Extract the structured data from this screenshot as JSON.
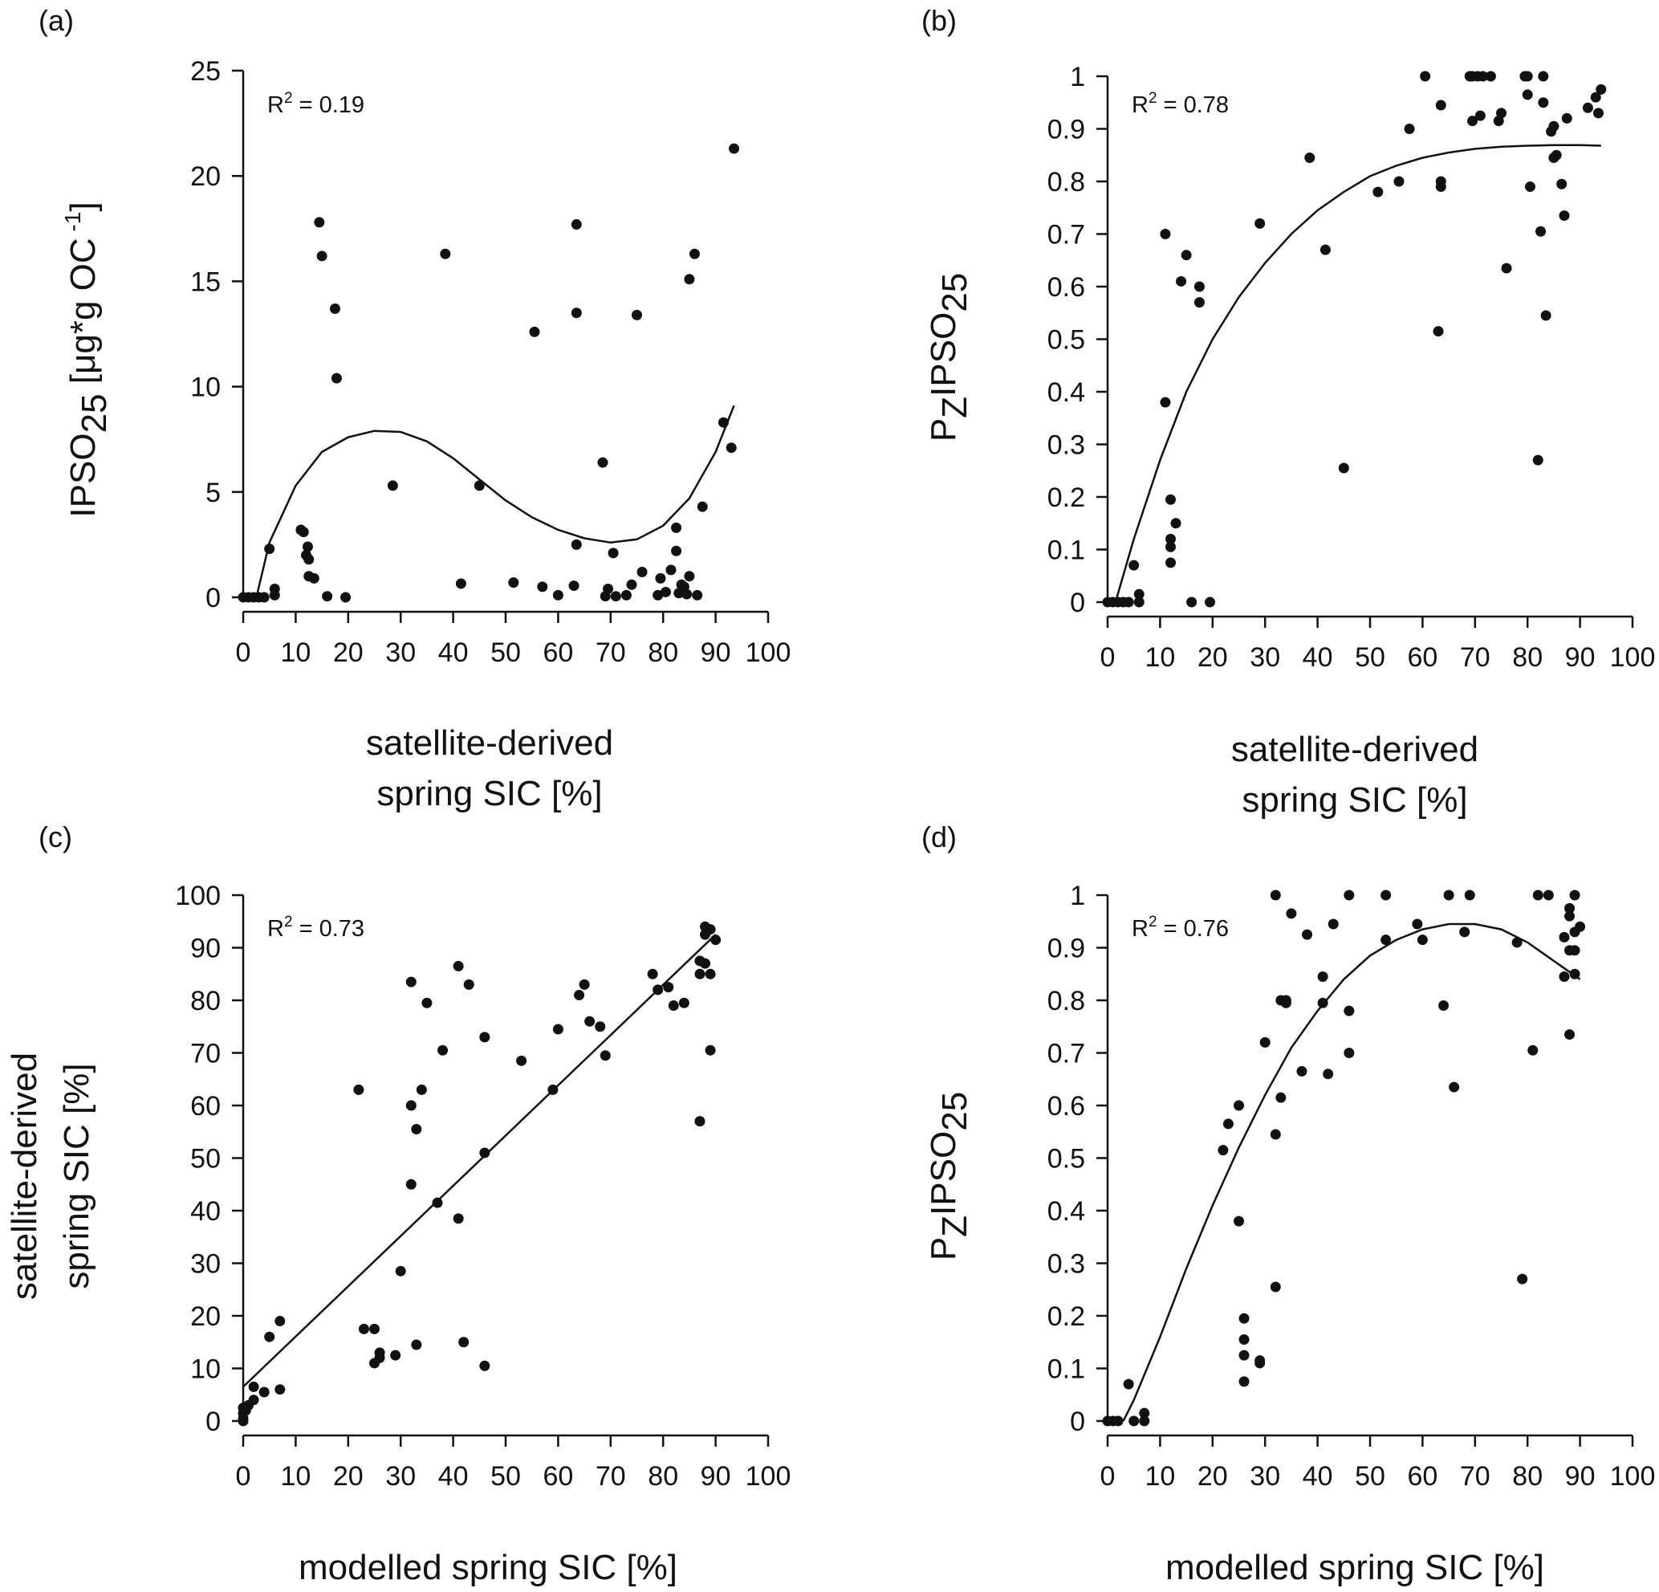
{
  "figure": {
    "panels": [
      {
        "id": "a",
        "panel_label": "(a)",
        "r2_label": "R",
        "r2_sup": "2",
        "r2_value": " = 0.19",
        "x_axis_label_lines": [
          "satellite-derived",
          "spring SIC [%]"
        ],
        "y_axis_label_main": "IPSO",
        "y_axis_label_sub": "25",
        "y_axis_label_rest": "  [μg*g OC",
        "y_axis_label_sup": " -1",
        "y_axis_label_end": "]"
      },
      {
        "id": "b",
        "panel_label": "(b)",
        "r2_label": "R",
        "r2_sup": "2",
        "r2_value": " = 0.78",
        "x_axis_label_lines": [
          "satellite-derived",
          "spring SIC [%]"
        ],
        "y_axis_label_main": "P",
        "y_axis_label_sub": "Z",
        "y_axis_label_rest": "IPSO",
        "y_axis_label_sub2": "25"
      },
      {
        "id": "c",
        "panel_label": "(c)",
        "r2_label": "R",
        "r2_sup": "2",
        "r2_value": " = 0.73",
        "x_axis_label_lines": [
          "modelled spring SIC [%]"
        ],
        "y_axis_label_lines": [
          "satellite-derived",
          "spring SIC [%]"
        ]
      },
      {
        "id": "d",
        "panel_label": "(d)",
        "r2_label": "R",
        "r2_sup": "2",
        "r2_value": " = 0.76",
        "x_axis_label_lines": [
          "modelled spring SIC [%]"
        ],
        "y_axis_label_main": "P",
        "y_axis_label_sub": "Z",
        "y_axis_label_rest": "IPSO",
        "y_axis_label_sub2": "25"
      }
    ]
  },
  "chart_data": [
    {
      "type": "scatter",
      "panel": "(a)",
      "xlabel": "satellite-derived spring SIC [%]",
      "ylabel": "IPSO25 [μg*g OC -1]",
      "xlim": [
        0,
        100
      ],
      "ylim": [
        0,
        25
      ],
      "xticks": [
        0,
        10,
        20,
        30,
        40,
        50,
        60,
        70,
        80,
        90,
        100
      ],
      "yticks": [
        0,
        5,
        10,
        15,
        20,
        25
      ],
      "annotation": "R2 = 0.19",
      "points": [
        [
          0,
          0
        ],
        [
          1,
          0
        ],
        [
          2,
          0
        ],
        [
          3,
          0
        ],
        [
          4,
          0
        ],
        [
          5,
          2.3
        ],
        [
          6,
          0.4
        ],
        [
          6,
          0.1
        ],
        [
          11,
          3.2
        ],
        [
          11.5,
          3.1
        ],
        [
          12,
          2.0
        ],
        [
          12.5,
          1.8
        ],
        [
          12.3,
          2.4
        ],
        [
          12.5,
          1.0
        ],
        [
          13.5,
          0.9
        ],
        [
          14.5,
          17.8
        ],
        [
          15,
          16.2
        ],
        [
          16,
          0.05
        ],
        [
          17.5,
          13.7
        ],
        [
          17.8,
          10.4
        ],
        [
          19.5,
          0
        ],
        [
          28.5,
          5.3
        ],
        [
          38.5,
          16.3
        ],
        [
          41.5,
          0.65
        ],
        [
          45,
          5.3
        ],
        [
          51.5,
          0.7
        ],
        [
          55.5,
          12.6
        ],
        [
          57,
          0.5
        ],
        [
          60,
          0.1
        ],
        [
          63,
          0.55
        ],
        [
          63.5,
          2.5
        ],
        [
          63.5,
          17.7
        ],
        [
          63.5,
          13.5
        ],
        [
          68.5,
          6.4
        ],
        [
          69,
          0.05
        ],
        [
          69.5,
          0.4
        ],
        [
          70.5,
          2.1
        ],
        [
          71,
          0.05
        ],
        [
          73,
          0.1
        ],
        [
          74,
          0.6
        ],
        [
          75,
          13.4
        ],
        [
          76,
          1.2
        ],
        [
          79,
          0.1
        ],
        [
          79.5,
          0.9
        ],
        [
          80.5,
          0.25
        ],
        [
          81.5,
          1.3
        ],
        [
          82.5,
          3.3
        ],
        [
          82.5,
          2.2
        ],
        [
          83,
          0.2
        ],
        [
          83.5,
          0.6
        ],
        [
          84,
          0.5
        ],
        [
          84.5,
          0.15
        ],
        [
          85,
          15.1
        ],
        [
          85,
          1.0
        ],
        [
          86,
          16.3
        ],
        [
          86.5,
          0.1
        ],
        [
          87.5,
          4.3
        ],
        [
          91.5,
          8.3
        ],
        [
          93,
          7.1
        ],
        [
          93.5,
          21.3
        ]
      ],
      "fit": [
        [
          2.5,
          0
        ],
        [
          5,
          2.6
        ],
        [
          10,
          5.3
        ],
        [
          15,
          6.9
        ],
        [
          20,
          7.6
        ],
        [
          25,
          7.9
        ],
        [
          30,
          7.85
        ],
        [
          35,
          7.4
        ],
        [
          40,
          6.6
        ],
        [
          45,
          5.6
        ],
        [
          50,
          4.6
        ],
        [
          55,
          3.8
        ],
        [
          60,
          3.2
        ],
        [
          65,
          2.8
        ],
        [
          70,
          2.6
        ],
        [
          75,
          2.75
        ],
        [
          80,
          3.4
        ],
        [
          85,
          4.7
        ],
        [
          90,
          6.9
        ],
        [
          93.5,
          9.1
        ]
      ]
    },
    {
      "type": "scatter",
      "panel": "(b)",
      "xlabel": "satellite-derived spring SIC [%]",
      "ylabel": "PZIPSO25",
      "xlim": [
        0,
        100
      ],
      "ylim": [
        0,
        1
      ],
      "xticks": [
        0,
        10,
        20,
        30,
        40,
        50,
        60,
        70,
        80,
        90,
        100
      ],
      "yticks": [
        0,
        0.1,
        0.2,
        0.3,
        0.4,
        0.5,
        0.6,
        0.7,
        0.8,
        0.9,
        1
      ],
      "annotation": "R2 = 0.78",
      "points": [
        [
          0,
          0
        ],
        [
          1,
          0
        ],
        [
          2,
          0
        ],
        [
          3,
          0
        ],
        [
          4,
          0
        ],
        [
          5,
          0.07
        ],
        [
          6,
          0.015
        ],
        [
          6,
          0
        ],
        [
          11,
          0.7
        ],
        [
          11,
          0.38
        ],
        [
          12,
          0.195
        ],
        [
          12,
          0.12
        ],
        [
          12,
          0.105
        ],
        [
          12,
          0.075
        ],
        [
          13,
          0.15
        ],
        [
          14,
          0.61
        ],
        [
          15,
          0.66
        ],
        [
          16,
          0
        ],
        [
          17.5,
          0.6
        ],
        [
          17.5,
          0.57
        ],
        [
          19.5,
          0
        ],
        [
          29,
          0.72
        ],
        [
          38.5,
          0.845
        ],
        [
          41.5,
          0.67
        ],
        [
          45,
          0.255
        ],
        [
          51.5,
          0.78
        ],
        [
          55.5,
          0.8
        ],
        [
          57.5,
          0.9
        ],
        [
          60.5,
          1.0
        ],
        [
          63,
          0.515
        ],
        [
          63.5,
          0.8
        ],
        [
          63.5,
          0.79
        ],
        [
          63.5,
          0.945
        ],
        [
          69,
          1.0
        ],
        [
          69.5,
          1.0
        ],
        [
          70.5,
          1.0
        ],
        [
          71.5,
          1.0
        ],
        [
          69.5,
          0.915
        ],
        [
          71,
          0.925
        ],
        [
          73,
          1.0
        ],
        [
          74.5,
          0.915
        ],
        [
          75,
          0.93
        ],
        [
          76,
          0.635
        ],
        [
          79.5,
          1.0
        ],
        [
          80,
          1.0
        ],
        [
          80,
          0.965
        ],
        [
          80.5,
          0.79
        ],
        [
          82,
          0.27
        ],
        [
          82.5,
          0.705
        ],
        [
          83,
          0.95
        ],
        [
          83,
          1.0
        ],
        [
          83.5,
          0.545
        ],
        [
          84.5,
          0.895
        ],
        [
          85,
          0.845
        ],
        [
          85,
          0.905
        ],
        [
          85.5,
          0.85
        ],
        [
          86.5,
          0.795
        ],
        [
          87,
          0.735
        ],
        [
          87.5,
          0.92
        ],
        [
          91.5,
          0.94
        ],
        [
          93,
          0.96
        ],
        [
          93.5,
          0.93
        ],
        [
          94,
          0.975
        ]
      ],
      "fit": [
        [
          1.5,
          0
        ],
        [
          5,
          0.12
        ],
        [
          10,
          0.27
        ],
        [
          15,
          0.4
        ],
        [
          20,
          0.5
        ],
        [
          25,
          0.58
        ],
        [
          30,
          0.645
        ],
        [
          35,
          0.7
        ],
        [
          40,
          0.745
        ],
        [
          45,
          0.78
        ],
        [
          50,
          0.81
        ],
        [
          55,
          0.83
        ],
        [
          60,
          0.845
        ],
        [
          65,
          0.855
        ],
        [
          70,
          0.862
        ],
        [
          75,
          0.866
        ],
        [
          80,
          0.868
        ],
        [
          85,
          0.869
        ],
        [
          90,
          0.869
        ],
        [
          94,
          0.868
        ]
      ]
    },
    {
      "type": "scatter",
      "panel": "(c)",
      "xlabel": "modelled spring SIC [%]",
      "ylabel": "satellite-derived spring SIC [%]",
      "xlim": [
        0,
        100
      ],
      "ylim": [
        0,
        100
      ],
      "xticks": [
        0,
        10,
        20,
        30,
        40,
        50,
        60,
        70,
        80,
        90,
        100
      ],
      "yticks": [
        0,
        10,
        20,
        30,
        40,
        50,
        60,
        70,
        80,
        90,
        100
      ],
      "annotation": "R2 = 0.73",
      "points": [
        [
          0,
          0
        ],
        [
          0,
          0.5
        ],
        [
          0,
          1.5
        ],
        [
          0,
          2.5
        ],
        [
          0.5,
          2
        ],
        [
          1,
          3
        ],
        [
          2,
          4
        ],
        [
          2,
          6.5
        ],
        [
          4,
          5.5
        ],
        [
          5,
          16
        ],
        [
          7,
          19
        ],
        [
          7,
          6
        ],
        [
          22,
          63
        ],
        [
          23,
          17.5
        ],
        [
          25,
          17.5
        ],
        [
          25,
          11
        ],
        [
          26,
          13
        ],
        [
          26,
          12
        ],
        [
          29,
          12.5
        ],
        [
          30,
          28.5
        ],
        [
          32,
          83.5
        ],
        [
          32,
          60
        ],
        [
          32,
          45
        ],
        [
          33,
          55.5
        ],
        [
          33,
          14.5
        ],
        [
          34,
          63
        ],
        [
          35,
          79.5
        ],
        [
          37,
          41.5
        ],
        [
          38,
          70.5
        ],
        [
          41,
          86.5
        ],
        [
          41,
          38.5
        ],
        [
          42,
          15
        ],
        [
          43,
          83
        ],
        [
          46,
          73
        ],
        [
          46,
          51
        ],
        [
          46,
          10.5
        ],
        [
          53,
          68.5
        ],
        [
          59,
          63
        ],
        [
          60,
          74.5
        ],
        [
          64,
          81
        ],
        [
          65,
          83
        ],
        [
          66,
          76
        ],
        [
          68,
          75
        ],
        [
          69,
          69.5
        ],
        [
          78,
          85
        ],
        [
          79,
          82
        ],
        [
          81,
          82.5
        ],
        [
          82,
          79
        ],
        [
          84,
          79.5
        ],
        [
          87,
          87.5
        ],
        [
          87,
          85
        ],
        [
          87,
          57
        ],
        [
          88,
          94
        ],
        [
          88,
          92.5
        ],
        [
          89,
          93.5
        ],
        [
          88,
          87
        ],
        [
          89,
          85
        ],
        [
          89,
          70.5
        ],
        [
          90,
          91.5
        ]
      ],
      "fit": [
        [
          0,
          6.5
        ],
        [
          90,
          92.5
        ]
      ]
    },
    {
      "type": "scatter",
      "panel": "(d)",
      "xlabel": "modelled spring SIC [%]",
      "ylabel": "PZIPSO25",
      "xlim": [
        0,
        100
      ],
      "ylim": [
        0,
        1
      ],
      "xticks": [
        0,
        10,
        20,
        30,
        40,
        50,
        60,
        70,
        80,
        90,
        100
      ],
      "yticks": [
        0,
        0.1,
        0.2,
        0.3,
        0.4,
        0.5,
        0.6,
        0.7,
        0.8,
        0.9,
        1
      ],
      "annotation": "R2 = 0.76",
      "points": [
        [
          0,
          0
        ],
        [
          1,
          0
        ],
        [
          2,
          0
        ],
        [
          4,
          0.07
        ],
        [
          5,
          0
        ],
        [
          7,
          0.015
        ],
        [
          7,
          0
        ],
        [
          22,
          0.515
        ],
        [
          23,
          0.565
        ],
        [
          25,
          0.6
        ],
        [
          25,
          0.38
        ],
        [
          26,
          0.195
        ],
        [
          26,
          0.155
        ],
        [
          26,
          0.125
        ],
        [
          26,
          0.075
        ],
        [
          29,
          0.11
        ],
        [
          29,
          0.115
        ],
        [
          30,
          0.72
        ],
        [
          32,
          1.0
        ],
        [
          32,
          0.545
        ],
        [
          32,
          0.255
        ],
        [
          33,
          0.615
        ],
        [
          33,
          0.8
        ],
        [
          34,
          0.8
        ],
        [
          34,
          0.795
        ],
        [
          35,
          0.965
        ],
        [
          37,
          0.665
        ],
        [
          38,
          0.925
        ],
        [
          41,
          0.845
        ],
        [
          41,
          0.795
        ],
        [
          42,
          0.66
        ],
        [
          43,
          0.945
        ],
        [
          46,
          1.0
        ],
        [
          46,
          0.78
        ],
        [
          46,
          0.7
        ],
        [
          53,
          1.0
        ],
        [
          53,
          0.915
        ],
        [
          59,
          0.945
        ],
        [
          60,
          0.915
        ],
        [
          64,
          0.79
        ],
        [
          65,
          1.0
        ],
        [
          66,
          0.635
        ],
        [
          68,
          0.93
        ],
        [
          69,
          1.0
        ],
        [
          78,
          0.91
        ],
        [
          79,
          0.27
        ],
        [
          81,
          0.705
        ],
        [
          82,
          1.0
        ],
        [
          84,
          1.0
        ],
        [
          87,
          0.92
        ],
        [
          87,
          0.845
        ],
        [
          88,
          0.96
        ],
        [
          88,
          0.975
        ],
        [
          88,
          0.895
        ],
        [
          88,
          0.735
        ],
        [
          89,
          1.0
        ],
        [
          89,
          0.93
        ],
        [
          89,
          0.895
        ],
        [
          89,
          0.85
        ],
        [
          90,
          0.94
        ]
      ],
      "fit": [
        [
          3,
          0
        ],
        [
          5,
          0.04
        ],
        [
          10,
          0.16
        ],
        [
          15,
          0.29
        ],
        [
          20,
          0.41
        ],
        [
          25,
          0.52
        ],
        [
          30,
          0.62
        ],
        [
          35,
          0.71
        ],
        [
          40,
          0.78
        ],
        [
          45,
          0.84
        ],
        [
          50,
          0.885
        ],
        [
          55,
          0.915
        ],
        [
          60,
          0.935
        ],
        [
          65,
          0.945
        ],
        [
          70,
          0.945
        ],
        [
          75,
          0.935
        ],
        [
          80,
          0.91
        ],
        [
          85,
          0.875
        ],
        [
          90,
          0.84
        ]
      ]
    }
  ]
}
